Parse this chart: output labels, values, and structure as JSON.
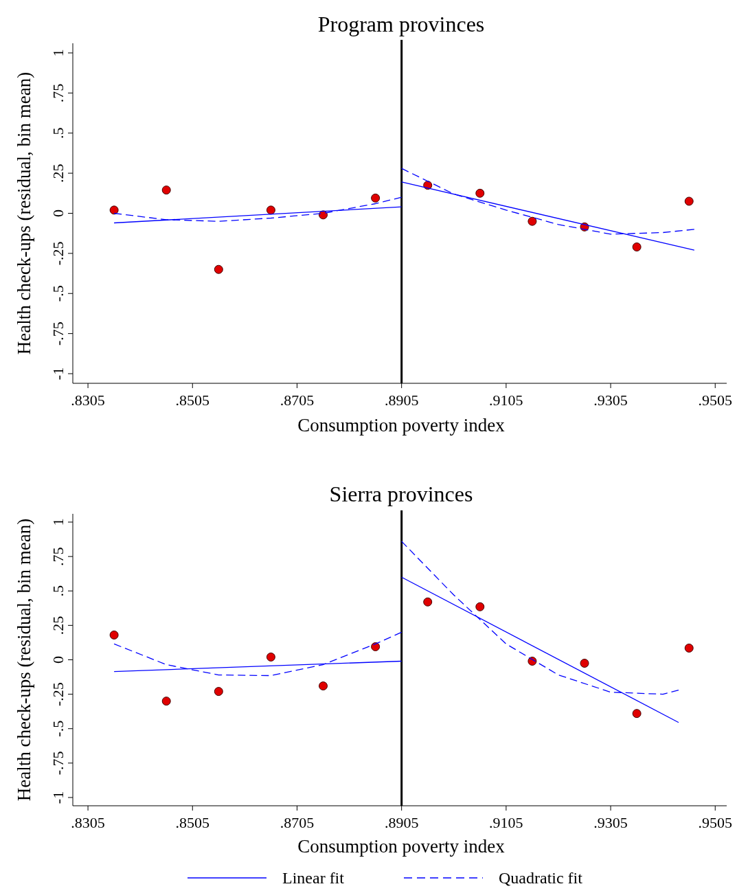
{
  "chart_data": [
    {
      "type": "scatter",
      "title": "Program provinces",
      "xlabel": "Consumption poverty index",
      "ylabel": "Health check-ups (residual, bin mean)",
      "xlim": [
        0.8276,
        0.9527
      ],
      "ylim": [
        -1.06,
        1.06
      ],
      "xticks": [
        {
          "value": 0.8305,
          "label": ".8305"
        },
        {
          "value": 0.8505,
          "label": ".8505"
        },
        {
          "value": 0.8705,
          "label": ".8705"
        },
        {
          "value": 0.8905,
          "label": ".8905"
        },
        {
          "value": 0.9105,
          "label": ".9105"
        },
        {
          "value": 0.9305,
          "label": ".9305"
        },
        {
          "value": 0.9505,
          "label": ".9505"
        }
      ],
      "yticks": [
        {
          "value": -1,
          "label": "-1"
        },
        {
          "value": -0.75,
          "label": "-.75"
        },
        {
          "value": -0.5,
          "label": "-.5"
        },
        {
          "value": -0.25,
          "label": "-.25"
        },
        {
          "value": 0,
          "label": "0"
        },
        {
          "value": 0.25,
          "label": ".25"
        },
        {
          "value": 0.5,
          "label": ".5"
        },
        {
          "value": 0.75,
          "label": ".75"
        },
        {
          "value": 1,
          "label": "1"
        }
      ],
      "legend": false,
      "ref_lines": [
        {
          "axis": "x",
          "value": 0.8905,
          "color": "#000000"
        }
      ],
      "series": [
        {
          "color": "#e00000",
          "marker": "circle",
          "x": [
            0.8355,
            0.8455,
            0.8555,
            0.8655,
            0.8755,
            0.8855,
            0.8955,
            0.9055,
            0.9155,
            0.9255,
            0.9355,
            0.9455
          ],
          "values": [
            0.02,
            0.145,
            -0.35,
            0.02,
            -0.01,
            0.095,
            0.175,
            0.125,
            -0.05,
            -0.085,
            -0.21,
            0.075
          ]
        },
        {
          "type": "line",
          "color": "#0000ff",
          "marker": "none",
          "line_style": "solid",
          "x": [
            0.8355,
            0.8905
          ],
          "values": [
            -0.06,
            0.04
          ]
        },
        {
          "type": "line",
          "color": "#0000ff",
          "marker": "none",
          "line_style": "solid",
          "x": [
            0.8905,
            0.9465
          ],
          "values": [
            0.195,
            -0.23
          ]
        },
        {
          "type": "line",
          "color": "#0000ff",
          "marker": "none",
          "line_style": "dashed",
          "x": [
            0.8355,
            0.8455,
            0.8555,
            0.8655,
            0.8755,
            0.8855,
            0.8905
          ],
          "values": [
            0.0,
            -0.04,
            -0.05,
            -0.03,
            0.0,
            0.06,
            0.1
          ]
        },
        {
          "type": "line",
          "color": "#0000ff",
          "marker": "none",
          "line_style": "dashed",
          "x": [
            0.8905,
            0.9005,
            0.9105,
            0.9205,
            0.9305,
            0.9405,
            0.9465
          ],
          "values": [
            0.28,
            0.12,
            0.02,
            -0.07,
            -0.13,
            -0.12,
            -0.1
          ]
        }
      ]
    },
    {
      "type": "scatter",
      "title": "Sierra provinces",
      "xlabel": "Consumption poverty index",
      "ylabel": "Health check-ups (residual, bin mean)",
      "xlim": [
        0.8276,
        0.9527
      ],
      "ylim": [
        -1.06,
        1.06
      ],
      "xticks": [
        {
          "value": 0.8305,
          "label": ".8305"
        },
        {
          "value": 0.8505,
          "label": ".8505"
        },
        {
          "value": 0.8705,
          "label": ".8705"
        },
        {
          "value": 0.8905,
          "label": ".8905"
        },
        {
          "value": 0.9105,
          "label": ".9105"
        },
        {
          "value": 0.9305,
          "label": ".9305"
        },
        {
          "value": 0.9505,
          "label": ".9505"
        }
      ],
      "yticks": [
        {
          "value": -1,
          "label": "-1"
        },
        {
          "value": -0.75,
          "label": "-.75"
        },
        {
          "value": -0.5,
          "label": "-.5"
        },
        {
          "value": -0.25,
          "label": "-.25"
        },
        {
          "value": 0,
          "label": "0"
        },
        {
          "value": 0.25,
          "label": ".25"
        },
        {
          "value": 0.5,
          "label": ".5"
        },
        {
          "value": 0.75,
          "label": ".75"
        },
        {
          "value": 1,
          "label": "1"
        }
      ],
      "legend": "bottom",
      "ref_lines": [
        {
          "axis": "x",
          "value": 0.8905,
          "color": "#000000"
        }
      ],
      "series": [
        {
          "color": "#e00000",
          "marker": "circle",
          "x": [
            0.8355,
            0.8455,
            0.8555,
            0.8655,
            0.8755,
            0.8855,
            0.8955,
            0.9055,
            0.9155,
            0.9255,
            0.9355,
            0.9455
          ],
          "values": [
            0.18,
            -0.3,
            -0.23,
            0.02,
            -0.19,
            0.095,
            0.42,
            0.385,
            -0.01,
            -0.025,
            -0.39,
            0.085
          ]
        },
        {
          "type": "line",
          "name": "Linear fit",
          "color": "#0000ff",
          "marker": "none",
          "line_style": "solid",
          "x": [
            0.8355,
            0.8905
          ],
          "values": [
            -0.085,
            -0.01
          ]
        },
        {
          "type": "line",
          "color": "#0000ff",
          "marker": "none",
          "line_style": "solid",
          "x": [
            0.8905,
            0.9435
          ],
          "values": [
            0.6,
            -0.455
          ]
        },
        {
          "type": "line",
          "name": "Quadratic fit",
          "color": "#0000ff",
          "marker": "none",
          "line_style": "dashed",
          "x": [
            0.8355,
            0.8455,
            0.8555,
            0.8655,
            0.8755,
            0.8855,
            0.8905
          ],
          "values": [
            0.115,
            -0.035,
            -0.11,
            -0.115,
            -0.035,
            0.115,
            0.2
          ]
        },
        {
          "type": "line",
          "color": "#0000ff",
          "marker": "none",
          "line_style": "dashed",
          "x": [
            0.8905,
            0.9005,
            0.9105,
            0.9205,
            0.9305,
            0.9405,
            0.9435
          ],
          "values": [
            0.86,
            0.47,
            0.115,
            -0.11,
            -0.235,
            -0.25,
            -0.22
          ]
        }
      ]
    }
  ]
}
